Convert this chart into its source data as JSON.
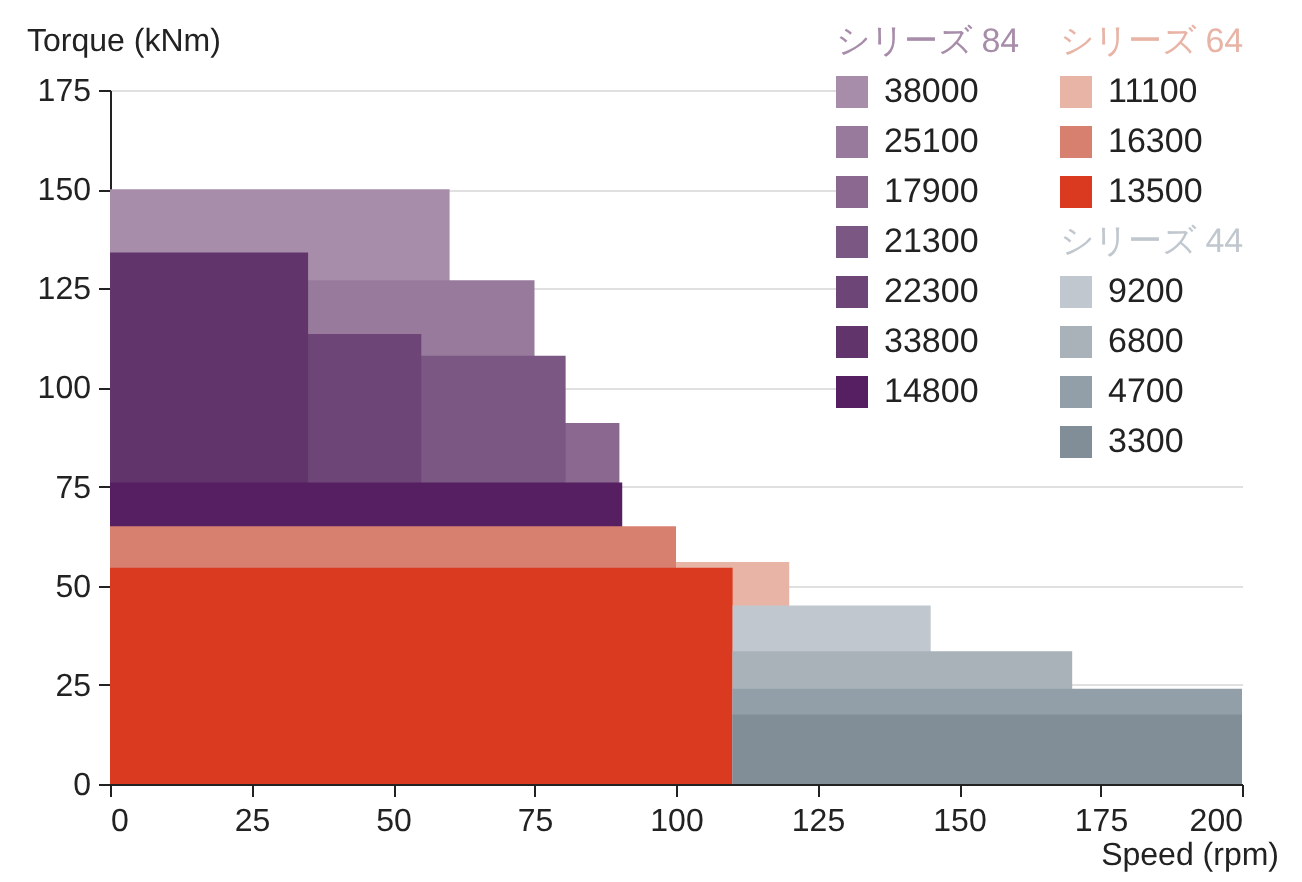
{
  "chart_data": {
    "type": "area",
    "xlabel": "Speed (rpm)",
    "ylabel": "Torque (kNm)",
    "annotations": [
      "シリーズ 84",
      "シリーズ 64",
      "シリーズ 44"
    ],
    "xlim": [
      0,
      200
    ],
    "xticks": [
      0,
      25,
      50,
      75,
      100,
      125,
      150,
      175,
      200
    ],
    "ylim": [
      0,
      175
    ],
    "yticks": [
      0,
      25,
      50,
      75,
      100,
      125,
      150,
      175
    ],
    "grid": "y",
    "legend": "top right",
    "series": [
      {
        "name": "38000",
        "color": "#a88daa",
        "x": [
          0,
          60
        ],
        "values": [
          150,
          150
        ]
      },
      {
        "name": "25100",
        "color": "#977a9c",
        "x": [
          0,
          75
        ],
        "values": [
          127,
          127
        ]
      },
      {
        "name": "17900",
        "color": "#8a688f",
        "x": [
          0,
          90
        ],
        "values": [
          91,
          91
        ]
      },
      {
        "name": "21300",
        "color": "#7b5884",
        "x": [
          0,
          80.5
        ],
        "values": [
          108,
          108
        ]
      },
      {
        "name": "22300",
        "color": "#6d4677",
        "x": [
          0,
          55
        ],
        "values": [
          113.5,
          113.5
        ]
      },
      {
        "name": "33800",
        "color": "#61356b",
        "x": [
          0,
          35
        ],
        "values": [
          134,
          134
        ]
      },
      {
        "name": "14800",
        "color": "#561f61",
        "x": [
          0,
          90.5
        ],
        "values": [
          76,
          76
        ]
      },
      {
        "name": "11100",
        "color": "#e8b4a6",
        "x": [
          0,
          120
        ],
        "values": [
          56,
          56
        ]
      },
      {
        "name": "16300",
        "color": "#d88070",
        "x": [
          0,
          100
        ],
        "values": [
          65,
          65
        ]
      },
      {
        "name": "13500",
        "color": "#d93a20",
        "x": [
          0,
          110
        ],
        "values": [
          54.5,
          54.5
        ]
      },
      {
        "name": "9200",
        "color": "#c1c7ce",
        "x": [
          110,
          145
        ],
        "values": [
          45,
          45
        ]
      },
      {
        "name": "6800",
        "color": "#a9b2b9",
        "x": [
          110,
          170
        ],
        "values": [
          33.5,
          33.5
        ]
      },
      {
        "name": "4700",
        "color": "#939fa8",
        "x": [
          110,
          200
        ],
        "values": [
          24,
          24
        ]
      },
      {
        "name": "3300",
        "color": "#818e98",
        "x": [
          110,
          200
        ],
        "values": [
          17.5,
          17.5
        ]
      }
    ]
  }
}
